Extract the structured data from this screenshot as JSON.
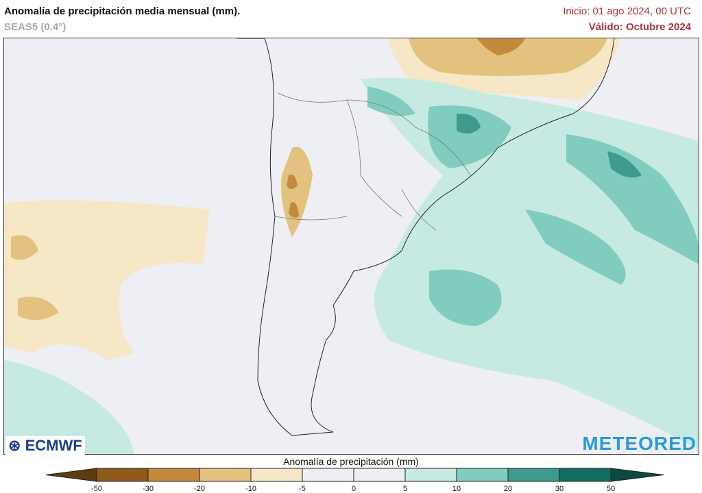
{
  "header": {
    "title": "Anomalía de precipitación media mensual (mm).",
    "model": "SEAS5 (0.4°)",
    "init": "Inicio: 01 ago 2024, 00 UTC",
    "valid": "Válido: Octubre 2024"
  },
  "logos": {
    "left": "ECMWF",
    "right": "METEORED"
  },
  "colorbar": {
    "title": "Anomalía de precipitación (mm)",
    "ticks": [
      "-50",
      "-30",
      "-20",
      "-10",
      "-5",
      "0",
      "5",
      "10",
      "20",
      "30",
      "50"
    ],
    "colors": [
      "#5e3c10",
      "#8d5a1c",
      "#c48a3c",
      "#e2c27e",
      "#f6e7c6",
      "#eeeef5",
      "#eeeef5",
      "#c6eae1",
      "#80cdbf",
      "#3d9a8c",
      "#126e60",
      "#0b4a3f"
    ]
  },
  "map_colors": {
    "ocean": "#eeeef5",
    "land": "#eeeef5",
    "dry": "#e2c27e",
    "wet": "#80cdbf"
  }
}
